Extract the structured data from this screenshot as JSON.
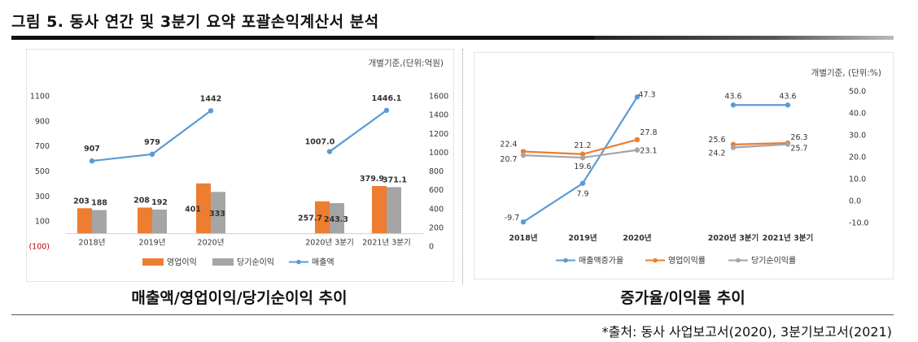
{
  "figure_title": "그림 5. 동사 연간 및 3분기 요약 포괄손익계산서 분석",
  "left_caption": "매출액/영업이익/당기순이익 추이",
  "right_caption": "증가율/이익률 추이",
  "source": "*출처: 동사 사업보고서(2020), 3분기보고서(2021)",
  "colors": {
    "orange": "#ED7D31",
    "gray": "#A5A5A5",
    "blue": "#5B9BD5",
    "neg": "#C00000"
  },
  "chart_data": [
    {
      "type": "bar",
      "unit_note": "개별기준,(단위:억원)",
      "categories": [
        "2018년",
        "2019년",
        "2020년",
        "2020년 3분기",
        "2021년 3분기"
      ],
      "left_axis_ticks": [
        "1100",
        "900",
        "700",
        "500",
        "300",
        "100",
        "(100)"
      ],
      "right_axis_ticks": [
        "1600",
        "1400",
        "1200",
        "1000",
        "800",
        "600",
        "400",
        "200",
        "0"
      ],
      "ylim_left": [
        -100,
        1100
      ],
      "ylim_right": [
        0,
        1600
      ],
      "series": [
        {
          "name": "영업이익",
          "kind": "bar",
          "axis": "left",
          "values": [
            203,
            208,
            401,
            257.7,
            379.9
          ],
          "labels": [
            "203",
            "208",
            "401",
            "257.7",
            "379.9"
          ]
        },
        {
          "name": "당기순이익",
          "kind": "bar",
          "axis": "left",
          "values": [
            188,
            192,
            333,
            243.3,
            371.1
          ],
          "labels": [
            "188",
            "192",
            "333",
            "243.3",
            "371.1"
          ]
        },
        {
          "name": "매출액",
          "kind": "line",
          "axis": "right",
          "values": [
            907,
            979,
            1442,
            1007.0,
            1446.1
          ],
          "labels": [
            "907",
            "979",
            "1442",
            "1007.0",
            "1446.1"
          ],
          "segments": [
            [
              0,
              2
            ],
            [
              3,
              4
            ]
          ]
        }
      ],
      "legend": [
        "영업이익",
        "당기순이익",
        "매출액"
      ],
      "legend_position": "bottom"
    },
    {
      "type": "line",
      "unit_note": "개별기준, (단위:%)",
      "categories": [
        "2018년",
        "2019년",
        "2020년",
        "2020년 3분기",
        "2021년 3분기"
      ],
      "right_axis_ticks": [
        "50.0",
        "40.0",
        "30.0",
        "20.0",
        "10.0",
        "0.0",
        "-10.0"
      ],
      "ylim": [
        -10,
        50
      ],
      "series": [
        {
          "name": "매출액증가율",
          "values": [
            -9.7,
            7.9,
            47.3,
            43.6,
            43.6
          ],
          "labels": [
            "-9.7",
            "7.9",
            "47.3",
            "43.6",
            "43.6"
          ],
          "segments": [
            [
              0,
              2
            ],
            [
              3,
              4
            ]
          ]
        },
        {
          "name": "영업이익률",
          "values": [
            22.4,
            21.2,
            27.8,
            25.6,
            26.3
          ],
          "labels": [
            "22.4",
            "21.2",
            "27.8",
            "25.6",
            "26.3"
          ],
          "segments": [
            [
              0,
              2
            ],
            [
              3,
              4
            ]
          ]
        },
        {
          "name": "당기순이익률",
          "values": [
            20.7,
            19.6,
            23.1,
            24.2,
            25.7
          ],
          "labels": [
            "20.7",
            "19.6",
            "23.1",
            "24.2",
            "25.7"
          ],
          "segments": [
            [
              0,
              2
            ],
            [
              3,
              4
            ]
          ]
        }
      ],
      "legend": [
        "매출액증가율",
        "영업이익률",
        "당기순이익률"
      ],
      "legend_position": "bottom"
    }
  ]
}
